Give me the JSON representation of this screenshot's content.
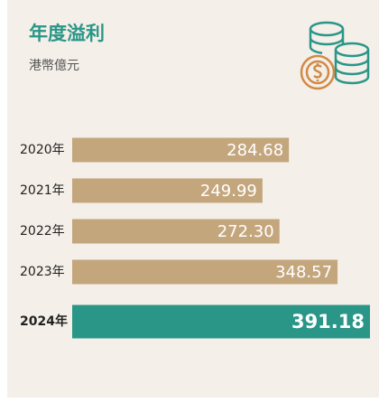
{
  "chart_data": {
    "type": "bar",
    "orientation": "horizontal",
    "title": "年度溢利",
    "subtitle": "港幣億元",
    "categories": [
      "2020年",
      "2021年",
      "2022年",
      "2023年",
      "2024年"
    ],
    "values": [
      284.68,
      249.99,
      272.3,
      348.57,
      391.18
    ],
    "value_labels": [
      "284.68",
      "249.99",
      "272.30",
      "348.57",
      "391.18"
    ],
    "colors": [
      "#c4a67d",
      "#c4a67d",
      "#c4a67d",
      "#c4a67d",
      "#2a9688"
    ]
  }
}
